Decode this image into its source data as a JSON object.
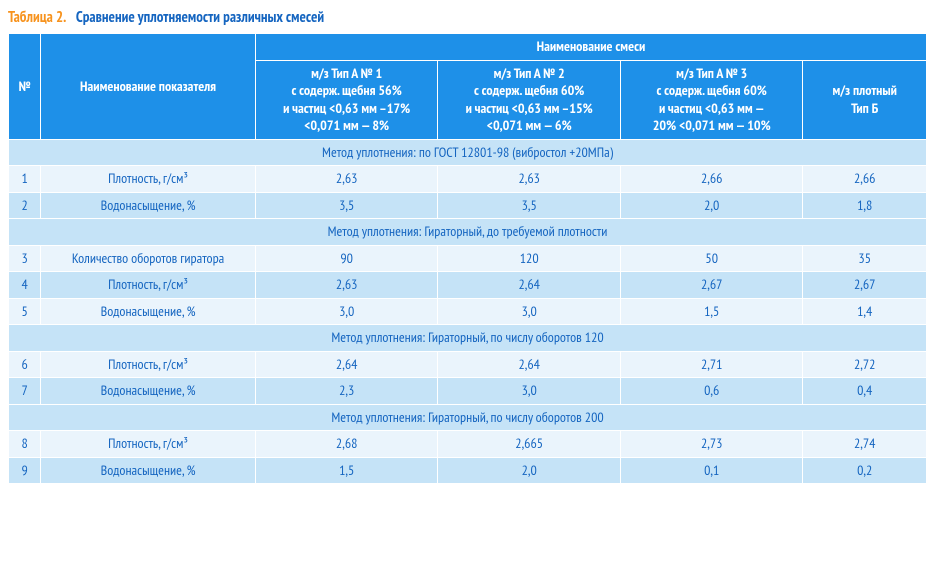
{
  "caption": {
    "label": "Таблица 2.",
    "text": "Сравнение уплотняемости различных смесей"
  },
  "head": {
    "col_num": "№",
    "col_name": "Наименование показателя",
    "col_group": "Наименование смеси",
    "mix1": {
      "l1": "м/з Тип А № 1",
      "l2": "с содерж. щебня 56%",
      "l3": "и частиц <0,63 мм –17%",
      "l4": "<0,071 мм — 8%"
    },
    "mix2": {
      "l1": "м/з Тип А № 2",
      "l2": "с содерж. щебня 60%",
      "l3": "и частиц <0,63 мм –15%",
      "l4": "<0,071 мм — 6%"
    },
    "mix3": {
      "l1": "м/з Тип А № 3",
      "l2": "с содерж. щебня 60%",
      "l3": "и частиц <0,63 мм —",
      "l4": "20% <0,071 мм — 10%"
    },
    "mix4": {
      "l1": "м/з плотный",
      "l2": "Тип Б"
    }
  },
  "sections": {
    "s1": "Метод уплотнения: по ГОСТ 12801-98 (вибростол +20МПа)",
    "s2": "Метод уплотнения: Гираторный, до требуемой плотности",
    "s3": "Метод уплотнения: Гираторный, по числу оборотов 120",
    "s4": "Метод уплотнения: Гираторный, по числу оборотов 200"
  },
  "rows": {
    "r1": {
      "n": "1",
      "name": "Плотность, г/см³",
      "v1": "2,63",
      "v2": "2,63",
      "v3": "2,66",
      "v4": "2,66"
    },
    "r2": {
      "n": "2",
      "name": "Водонасыщение, %",
      "v1": "3,5",
      "v2": "3,5",
      "v3": "2,0",
      "v4": "1,8"
    },
    "r3": {
      "n": "3",
      "name": "Количество оборотов гиратора",
      "v1": "90",
      "v2": "120",
      "v3": "50",
      "v4": "35"
    },
    "r4": {
      "n": "4",
      "name": "Плотность, г/см³",
      "v1": "2,63",
      "v2": "2,64",
      "v3": "2,67",
      "v4": "2,67"
    },
    "r5": {
      "n": "5",
      "name": "Водонасыщение, %",
      "v1": "3,0",
      "v2": "3,0",
      "v3": "1,5",
      "v4": "1,4"
    },
    "r6": {
      "n": "6",
      "name": "Плотность, г/см³",
      "v1": "2,64",
      "v2": "2,64",
      "v3": "2,71",
      "v4": "2,72"
    },
    "r7": {
      "n": "7",
      "name": "Водонасыщение, %",
      "v1": "2,3",
      "v2": "3,0",
      "v3": "0,6",
      "v4": "0,4"
    },
    "r8": {
      "n": "8",
      "name": "Плотность, г/см³",
      "v1": "2,68",
      "v2": "2,665",
      "v3": "2,73",
      "v4": "2,74"
    },
    "r9": {
      "n": "9",
      "name": "Водонасыщение, %",
      "v1": "1,5",
      "v2": "2,0",
      "v3": "0,1",
      "v4": "0,2"
    }
  },
  "style": {
    "header_bg": "#1e90e8",
    "header_fg": "#ffffff",
    "section_bg": "#c5e3f7",
    "row_odd_bg": "#eaf4fc",
    "row_even_bg": "#c5e3f7",
    "cell_fg": "#1565c0",
    "caption_label_color": "#f7931e",
    "caption_text_color": "#1565c0",
    "border_color": "#ffffff",
    "font_size_body": 14,
    "font_size_caption": 15
  }
}
